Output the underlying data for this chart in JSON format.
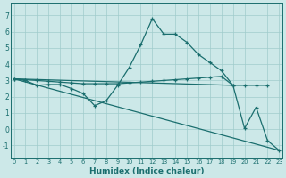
{
  "xlabel": "Humidex (Indice chaleur)",
  "background_color": "#cce8e8",
  "grid_color": "#a0cccc",
  "line_color": "#1a6e6e",
  "x_hours": [
    0,
    1,
    2,
    3,
    4,
    5,
    6,
    7,
    8,
    9,
    10,
    11,
    12,
    13,
    14,
    15,
    16,
    17,
    18,
    19,
    20,
    21,
    22,
    23
  ],
  "series1_y": [
    3.1,
    3.0,
    2.7,
    2.75,
    2.75,
    2.5,
    2.2,
    1.45,
    1.75,
    2.7,
    3.8,
    5.2,
    6.8,
    5.85,
    5.85,
    5.35,
    4.6,
    4.1,
    3.6,
    2.7,
    0.05,
    1.35,
    -0.7,
    -1.3
  ],
  "series2_x": [
    0,
    1,
    2,
    3,
    4,
    5,
    6,
    7,
    8,
    9,
    10,
    11,
    12,
    13,
    14,
    15,
    16,
    17,
    18,
    19,
    20,
    21,
    22
  ],
  "series2_y": [
    3.1,
    3.05,
    3.0,
    2.95,
    2.9,
    2.85,
    2.8,
    2.8,
    2.8,
    2.8,
    2.85,
    2.9,
    2.95,
    3.0,
    3.05,
    3.1,
    3.15,
    3.2,
    3.25,
    2.7,
    2.7,
    2.7,
    2.7
  ],
  "series3_x": [
    0,
    19
  ],
  "series3_y": [
    3.1,
    2.7
  ],
  "series4_x": [
    0,
    23
  ],
  "series4_y": [
    3.1,
    -1.3
  ],
  "ylim": [
    -1.8,
    7.8
  ],
  "xlim": [
    -0.3,
    23.3
  ],
  "yticks": [
    -1,
    0,
    1,
    2,
    3,
    4,
    5,
    6,
    7
  ],
  "xticks": [
    0,
    1,
    2,
    3,
    4,
    5,
    6,
    7,
    8,
    9,
    10,
    11,
    12,
    13,
    14,
    15,
    16,
    17,
    18,
    19,
    20,
    21,
    22,
    23
  ]
}
